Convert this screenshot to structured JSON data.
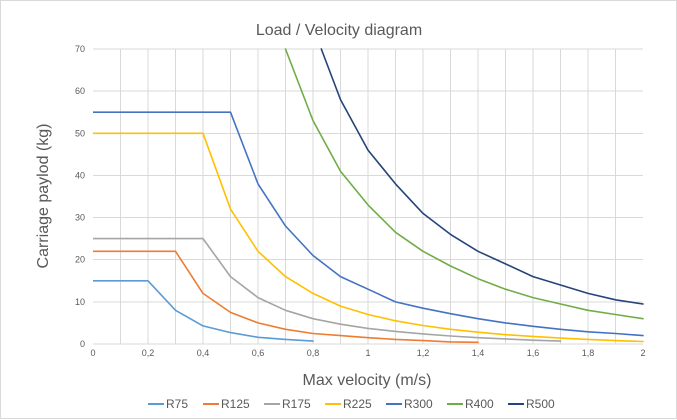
{
  "chart_data": {
    "type": "line",
    "title": "Load / Velocity diagram",
    "xlabel": "Max velocity (m/s)",
    "ylabel": "Carriage paylod (kg)",
    "xlim": [
      0,
      2
    ],
    "ylim": [
      0,
      70
    ],
    "x_ticks": [
      0,
      0.2,
      0.4,
      0.6,
      0.8,
      1,
      1.2,
      1.4,
      1.6,
      1.8,
      2
    ],
    "x_tick_labels": [
      "0",
      "0,2",
      "0,4",
      "0,6",
      "0,8",
      "1",
      "1,2",
      "1,4",
      "1,6",
      "1,8",
      "2"
    ],
    "y_ticks": [
      0,
      10,
      20,
      30,
      40,
      50,
      60,
      70
    ],
    "y_tick_labels": [
      "0",
      "10",
      "20",
      "30",
      "40",
      "50",
      "60",
      "70"
    ],
    "grid": true,
    "legend_position": "bottom",
    "series": [
      {
        "name": "R75",
        "color": "#5b9bd5",
        "x": [
          0,
          0.1,
          0.2,
          0.3,
          0.4,
          0.5,
          0.6,
          0.7,
          0.8
        ],
        "y": [
          15,
          15,
          15,
          8,
          4.3,
          2.7,
          1.6,
          1.1,
          0.7
        ]
      },
      {
        "name": "R125",
        "color": "#ed7d31",
        "x": [
          0,
          0.1,
          0.2,
          0.3,
          0.4,
          0.5,
          0.6,
          0.7,
          0.8,
          0.9,
          1,
          1.1,
          1.2,
          1.3,
          1.4
        ],
        "y": [
          22,
          22,
          22,
          22,
          12,
          7.5,
          5,
          3.5,
          2.5,
          2,
          1.5,
          1.1,
          0.8,
          0.5,
          0.4
        ]
      },
      {
        "name": "R175",
        "color": "#a5a5a5",
        "x": [
          0,
          0.1,
          0.2,
          0.3,
          0.4,
          0.5,
          0.6,
          0.7,
          0.8,
          0.9,
          1,
          1.1,
          1.2,
          1.3,
          1.4,
          1.5,
          1.6,
          1.7
        ],
        "y": [
          25,
          25,
          25,
          25,
          25,
          16,
          11,
          8,
          6,
          4.7,
          3.7,
          3,
          2.4,
          1.9,
          1.5,
          1.2,
          0.9,
          0.7
        ]
      },
      {
        "name": "R225",
        "color": "#ffc000",
        "x": [
          0,
          0.1,
          0.2,
          0.3,
          0.4,
          0.5,
          0.6,
          0.7,
          0.8,
          0.9,
          1,
          1.1,
          1.2,
          1.3,
          1.4,
          1.5,
          1.6,
          1.7,
          1.8,
          1.9,
          2
        ],
        "y": [
          50,
          50,
          50,
          50,
          50,
          32,
          22,
          16,
          12,
          9,
          7,
          5.5,
          4.4,
          3.5,
          2.8,
          2.2,
          1.8,
          1.4,
          1.1,
          0.8,
          0.6
        ]
      },
      {
        "name": "R300",
        "color": "#4472c4",
        "x": [
          0,
          0.1,
          0.2,
          0.3,
          0.4,
          0.5,
          0.6,
          0.7,
          0.8,
          0.9,
          1,
          1.1,
          1.2,
          1.3,
          1.4,
          1.5,
          1.6,
          1.7,
          1.8,
          1.9,
          2
        ],
        "y": [
          55,
          55,
          55,
          55,
          55,
          55,
          38,
          28,
          21,
          16,
          13,
          10,
          8.5,
          7.2,
          6,
          5,
          4.2,
          3.5,
          2.9,
          2.5,
          2
        ]
      },
      {
        "name": "R400",
        "color": "#70ad47",
        "x": [
          0.7,
          0.8,
          0.9,
          1,
          1.1,
          1.2,
          1.3,
          1.4,
          1.5,
          1.6,
          1.7,
          1.8,
          1.9,
          2
        ],
        "y": [
          70,
          53,
          41,
          33,
          26.5,
          22,
          18.5,
          15.5,
          13,
          11,
          9.5,
          8,
          7,
          6
        ]
      },
      {
        "name": "R500",
        "color": "#264478",
        "x": [
          0.83,
          0.9,
          1,
          1.1,
          1.2,
          1.3,
          1.4,
          1.5,
          1.6,
          1.7,
          1.8,
          1.9,
          2
        ],
        "y": [
          70,
          58,
          46,
          38,
          31,
          26,
          22,
          19,
          16,
          14,
          12,
          10.5,
          9.5
        ]
      }
    ]
  }
}
